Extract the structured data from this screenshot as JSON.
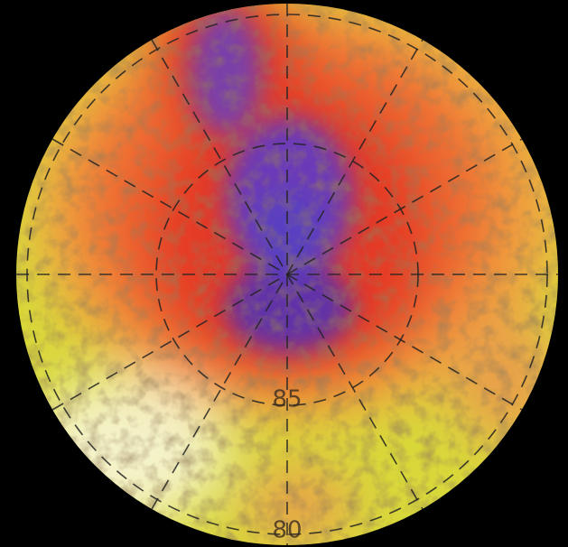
{
  "graticule": {
    "latitude_labels": [
      "85",
      "80"
    ]
  }
}
